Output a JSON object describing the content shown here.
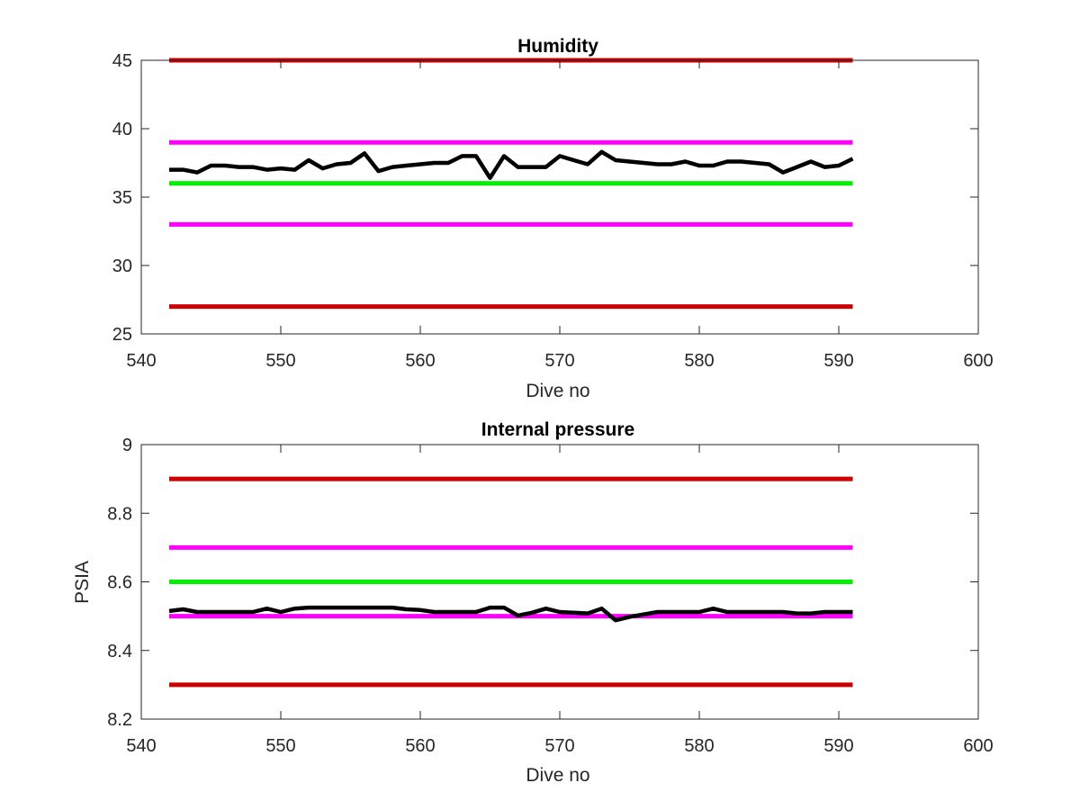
{
  "chart_data": [
    {
      "type": "line",
      "title": "Humidity",
      "xlabel": "Dive no",
      "ylabel": "",
      "xlim": [
        540,
        600
      ],
      "ylim": [
        25,
        45
      ],
      "xticks": [
        "540",
        "550",
        "560",
        "570",
        "580",
        "590",
        "600"
      ],
      "yticks": [
        "25",
        "30",
        "35",
        "40",
        "45"
      ],
      "grid": false,
      "reference_lines": [
        {
          "y": 45,
          "x_range": [
            542,
            591
          ],
          "color": "#cc0000"
        },
        {
          "y": 39,
          "x_range": [
            542,
            591
          ],
          "color": "#ff00ff"
        },
        {
          "y": 36,
          "x_range": [
            542,
            591
          ],
          "color": "#00ee00"
        },
        {
          "y": 33,
          "x_range": [
            542,
            591
          ],
          "color": "#ff00ff"
        },
        {
          "y": 27,
          "x_range": [
            542,
            591
          ],
          "color": "#cc0000"
        }
      ],
      "series": [
        {
          "color": "#000000",
          "x": [
            542,
            543,
            544,
            545,
            546,
            547,
            548,
            549,
            550,
            551,
            552,
            553,
            554,
            555,
            556,
            557,
            558,
            559,
            560,
            561,
            562,
            563,
            564,
            565,
            566,
            567,
            568,
            569,
            570,
            571,
            572,
            573,
            574,
            575,
            576,
            577,
            578,
            579,
            580,
            581,
            582,
            583,
            584,
            585,
            586,
            587,
            588,
            589,
            590,
            591
          ],
          "y": [
            37.0,
            37.0,
            36.8,
            37.3,
            37.3,
            37.2,
            37.2,
            37.0,
            37.1,
            37.0,
            37.7,
            37.1,
            37.4,
            37.5,
            38.2,
            36.9,
            37.2,
            37.3,
            37.4,
            37.5,
            37.5,
            38.0,
            38.0,
            36.4,
            38.0,
            37.2,
            37.2,
            37.2,
            38.0,
            37.7,
            37.4,
            38.3,
            37.7,
            37.6,
            37.5,
            37.4,
            37.4,
            37.6,
            37.3,
            37.3,
            37.6,
            37.6,
            37.5,
            37.4,
            36.8,
            37.2,
            37.6,
            37.2,
            37.3,
            37.8
          ]
        }
      ]
    },
    {
      "type": "line",
      "title": "Internal pressure",
      "xlabel": "Dive no",
      "ylabel": "PSIA",
      "xlim": [
        540,
        600
      ],
      "ylim": [
        8.2,
        9.0
      ],
      "xticks": [
        "540",
        "550",
        "560",
        "570",
        "580",
        "590",
        "600"
      ],
      "yticks": [
        "8.2",
        "8.4",
        "8.6",
        "8.8",
        "9"
      ],
      "grid": false,
      "reference_lines": [
        {
          "y": 8.9,
          "x_range": [
            542,
            591
          ],
          "color": "#cc0000"
        },
        {
          "y": 8.7,
          "x_range": [
            542,
            591
          ],
          "color": "#ff00ff"
        },
        {
          "y": 8.6,
          "x_range": [
            542,
            591
          ],
          "color": "#00ee00"
        },
        {
          "y": 8.5,
          "x_range": [
            542,
            591
          ],
          "color": "#ff00ff"
        },
        {
          "y": 8.3,
          "x_range": [
            542,
            591
          ],
          "color": "#cc0000"
        }
      ],
      "series": [
        {
          "color": "#000000",
          "x": [
            542,
            543,
            544,
            545,
            546,
            547,
            548,
            549,
            550,
            551,
            552,
            553,
            554,
            555,
            556,
            557,
            558,
            559,
            560,
            561,
            562,
            563,
            564,
            565,
            566,
            567,
            568,
            569,
            570,
            571,
            572,
            573,
            574,
            575,
            576,
            577,
            578,
            579,
            580,
            581,
            582,
            583,
            584,
            585,
            586,
            587,
            588,
            589,
            590,
            591
          ],
          "y": [
            8.515,
            8.52,
            8.512,
            8.512,
            8.512,
            8.512,
            8.512,
            8.522,
            8.512,
            8.522,
            8.525,
            8.525,
            8.525,
            8.525,
            8.525,
            8.525,
            8.525,
            8.52,
            8.518,
            8.512,
            8.512,
            8.512,
            8.512,
            8.525,
            8.525,
            8.502,
            8.51,
            8.522,
            8.512,
            8.51,
            8.508,
            8.522,
            8.488,
            8.498,
            8.505,
            8.512,
            8.512,
            8.512,
            8.512,
            8.522,
            8.512,
            8.512,
            8.512,
            8.512,
            8.512,
            8.508,
            8.508,
            8.512,
            8.512,
            8.512
          ]
        }
      ]
    }
  ]
}
